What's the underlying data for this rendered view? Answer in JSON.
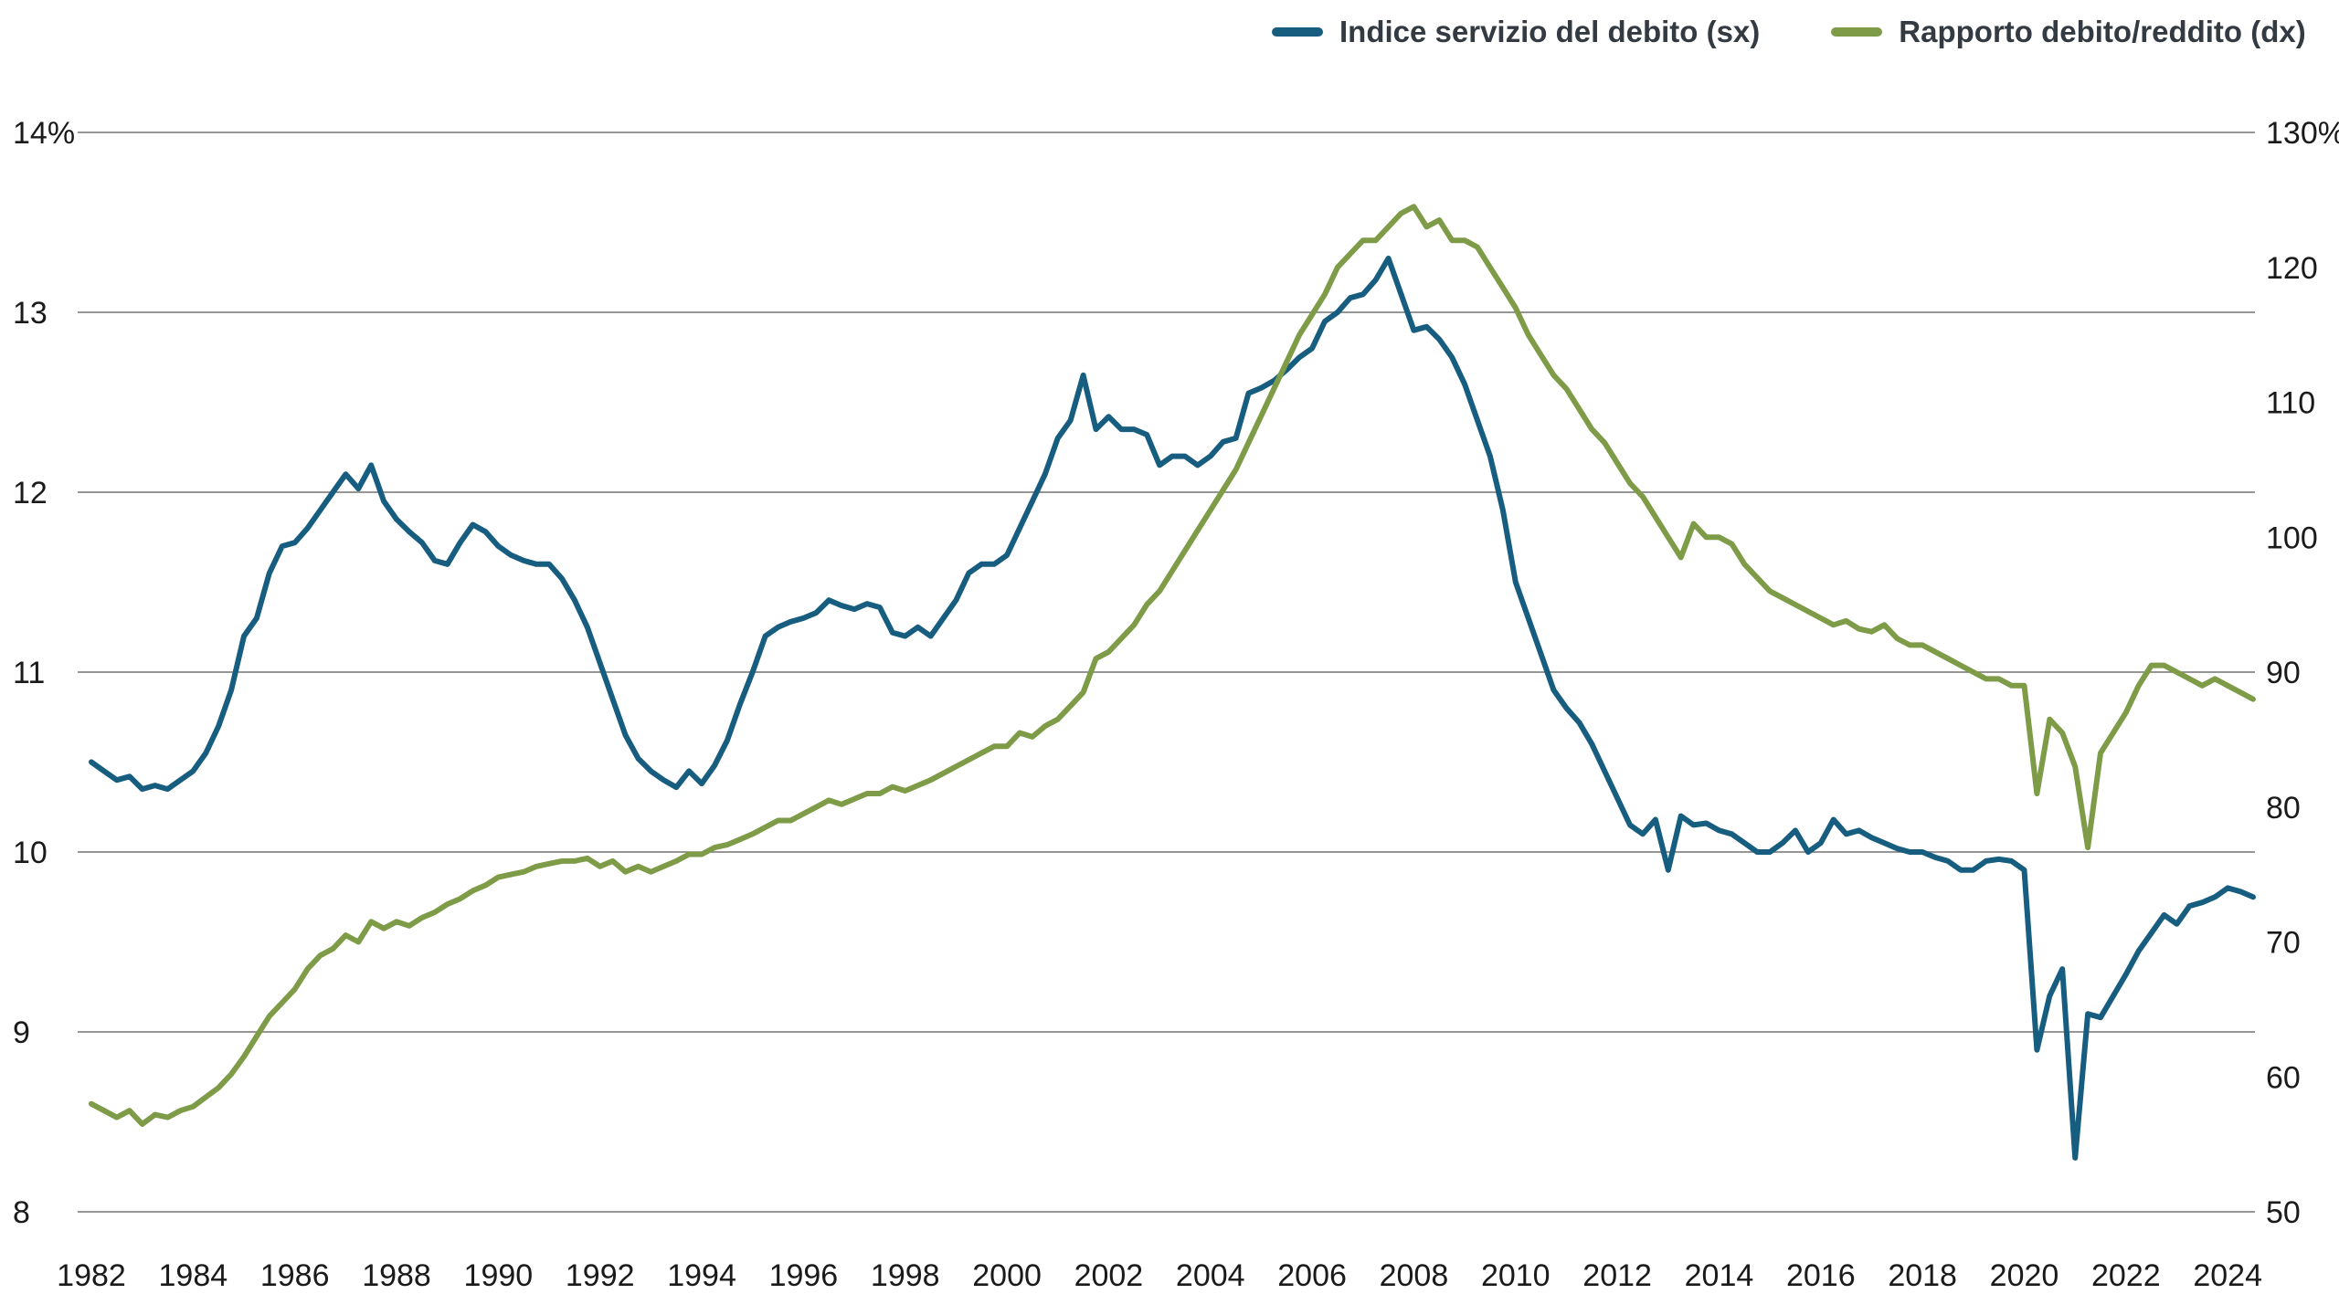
{
  "chart_data": {
    "type": "line",
    "title": "",
    "x_start": 1982,
    "x_end": 2024.5,
    "x_step": 0.25,
    "x_ticks": [
      1982,
      1984,
      1986,
      1988,
      1990,
      1992,
      1994,
      1996,
      1998,
      2000,
      2002,
      2004,
      2006,
      2008,
      2010,
      2012,
      2014,
      2016,
      2018,
      2020,
      2022,
      2024
    ],
    "left_axis": {
      "min": 8,
      "max": 14,
      "tick_values": [
        14,
        13,
        12,
        11,
        10,
        9,
        8
      ],
      "tick_labels": [
        "14%",
        "13",
        "12",
        "11",
        "10",
        "9",
        "8"
      ]
    },
    "right_axis": {
      "min": 50,
      "max": 130,
      "tick_values": [
        130,
        120,
        110,
        100,
        90,
        80,
        70,
        60,
        50
      ],
      "tick_labels": [
        "130%",
        "120",
        "110",
        "100",
        "90",
        "80",
        "70",
        "60",
        "50"
      ]
    },
    "grid": "horizontal",
    "gridline_color": "#737373",
    "text_color": "#1a1a1a",
    "legend_position": "top-right",
    "series": [
      {
        "id": "debt-service",
        "name": "Indice servizio del debito (sx)",
        "axis": "left",
        "color": "#175d80",
        "values": [
          10.5,
          10.45,
          10.4,
          10.42,
          10.35,
          10.37,
          10.35,
          10.4,
          10.45,
          10.55,
          10.7,
          10.9,
          11.2,
          11.3,
          11.55,
          11.7,
          11.72,
          11.8,
          11.9,
          12.0,
          12.1,
          12.02,
          12.15,
          11.95,
          11.85,
          11.78,
          11.72,
          11.62,
          11.6,
          11.72,
          11.82,
          11.78,
          11.7,
          11.65,
          11.62,
          11.6,
          11.6,
          11.52,
          11.4,
          11.25,
          11.05,
          10.85,
          10.65,
          10.52,
          10.45,
          10.4,
          10.36,
          10.45,
          10.38,
          10.48,
          10.62,
          10.82,
          11.0,
          11.2,
          11.25,
          11.28,
          11.3,
          11.33,
          11.4,
          11.37,
          11.35,
          11.38,
          11.36,
          11.22,
          11.2,
          11.25,
          11.2,
          11.3,
          11.4,
          11.55,
          11.6,
          11.6,
          11.65,
          11.8,
          11.95,
          12.1,
          12.3,
          12.4,
          12.65,
          12.35,
          12.42,
          12.35,
          12.35,
          12.32,
          12.15,
          12.2,
          12.2,
          12.15,
          12.2,
          12.28,
          12.3,
          12.55,
          12.58,
          12.62,
          12.68,
          12.75,
          12.8,
          12.95,
          13.0,
          13.08,
          13.1,
          13.18,
          13.3,
          13.1,
          12.9,
          12.92,
          12.85,
          12.75,
          12.6,
          12.4,
          12.2,
          11.9,
          11.5,
          11.3,
          11.1,
          10.9,
          10.8,
          10.72,
          10.6,
          10.45,
          10.3,
          10.15,
          10.1,
          10.18,
          9.9,
          10.2,
          10.15,
          10.16,
          10.12,
          10.1,
          10.05,
          10.0,
          10.0,
          10.05,
          10.12,
          10.0,
          10.05,
          10.18,
          10.1,
          10.12,
          10.08,
          10.05,
          10.02,
          10.0,
          10.0,
          9.97,
          9.95,
          9.9,
          9.9,
          9.95,
          9.96,
          9.95,
          9.9,
          8.9,
          9.2,
          9.35,
          8.3,
          9.1,
          9.08,
          9.2,
          9.32,
          9.45,
          9.55,
          9.65,
          9.6,
          9.7,
          9.72,
          9.75,
          9.8,
          9.78,
          9.75
        ]
      },
      {
        "id": "debt-income",
        "name": "Rapporto debito/reddito (dx)",
        "axis": "right",
        "color": "#7e9b47",
        "values": [
          58.0,
          57.5,
          57.0,
          57.5,
          56.5,
          57.2,
          57.0,
          57.5,
          57.8,
          58.5,
          59.2,
          60.2,
          61.5,
          63.0,
          64.5,
          65.5,
          66.5,
          68.0,
          69.0,
          69.5,
          70.5,
          70.0,
          71.5,
          71.0,
          71.5,
          71.2,
          71.8,
          72.2,
          72.8,
          73.2,
          73.8,
          74.2,
          74.8,
          75.0,
          75.2,
          75.6,
          75.8,
          76.0,
          76.0,
          76.2,
          75.6,
          76.0,
          75.2,
          75.6,
          75.2,
          75.6,
          76.0,
          76.5,
          76.5,
          77.0,
          77.2,
          77.6,
          78.0,
          78.5,
          79.0,
          79.0,
          79.5,
          80.0,
          80.5,
          80.2,
          80.6,
          81.0,
          81.0,
          81.5,
          81.2,
          81.6,
          82.0,
          82.5,
          83.0,
          83.5,
          84.0,
          84.5,
          84.5,
          85.5,
          85.2,
          86.0,
          86.5,
          87.5,
          88.5,
          91.0,
          91.5,
          92.5,
          93.5,
          95.0,
          96.0,
          97.5,
          99.0,
          100.5,
          102.0,
          103.5,
          105.0,
          107.0,
          109.0,
          111.0,
          113.0,
          115.0,
          116.5,
          118.0,
          120.0,
          121.0,
          122.0,
          122.0,
          123.0,
          124.0,
          124.5,
          123.0,
          123.5,
          122.0,
          122.0,
          121.5,
          120.0,
          118.5,
          117.0,
          115.0,
          113.5,
          112.0,
          111.0,
          109.5,
          108.0,
          107.0,
          105.5,
          104.0,
          103.0,
          101.5,
          100.0,
          98.5,
          101.0,
          100.0,
          100.0,
          99.5,
          98.0,
          97.0,
          96.0,
          95.5,
          95.0,
          94.5,
          94.0,
          93.5,
          93.8,
          93.2,
          93.0,
          93.5,
          92.5,
          92.0,
          92.0,
          91.5,
          91.0,
          90.5,
          90.0,
          89.5,
          89.5,
          89.0,
          89.0,
          81.0,
          86.5,
          85.5,
          83.0,
          77.0,
          84.0,
          85.5,
          87.0,
          89.0,
          90.5,
          90.5,
          90.0,
          89.5,
          89.0,
          89.5,
          89.0,
          88.5,
          88.0
        ]
      }
    ]
  }
}
